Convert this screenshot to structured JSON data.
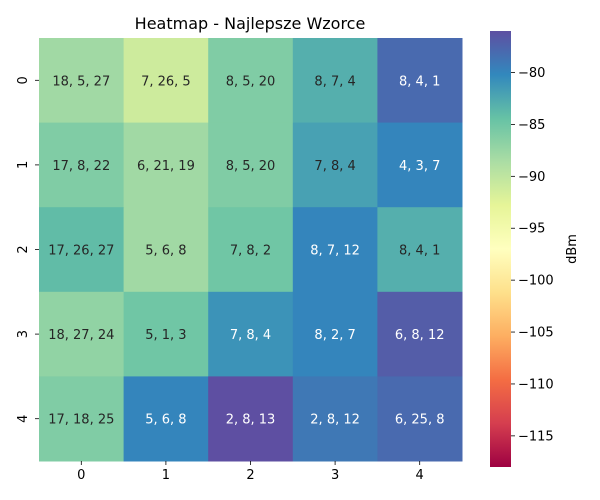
{
  "chart_data": {
    "type": "heatmap",
    "title": "Heatmap - Najlepsze Wzorce",
    "x_categories": [
      "0",
      "1",
      "2",
      "3",
      "4"
    ],
    "y_categories": [
      "0",
      "1",
      "2",
      "3",
      "4"
    ],
    "values": [
      [
        -88,
        -91,
        -86,
        -83,
        -78
      ],
      [
        -86,
        -88,
        -86,
        -82,
        -80
      ],
      [
        -84,
        -88,
        -85,
        -80,
        -83
      ],
      [
        -87,
        -85,
        -81,
        -80,
        -77
      ],
      [
        -86,
        -80,
        -76,
        -79,
        -78
      ]
    ],
    "annotations": [
      [
        "18, 5, 27",
        "7, 26, 5",
        "8, 5, 20",
        "8, 7, 4",
        "8, 4, 1"
      ],
      [
        "17, 8, 22",
        "6, 21, 19",
        "8, 5, 20",
        "7, 8, 4",
        "4, 3, 7"
      ],
      [
        "17, 26, 27",
        "5, 6, 8",
        "7, 8, 2",
        "8, 7, 12",
        "8, 4, 1"
      ],
      [
        "18, 27, 24",
        "5, 1, 3",
        "7, 8, 4",
        "8, 2, 7",
        "6, 8, 12"
      ],
      [
        "17, 18, 25",
        "5, 6, 8",
        "2, 8, 13",
        "2, 8, 12",
        "6, 25, 8"
      ]
    ],
    "colorbar": {
      "label": "dBm",
      "range": [
        -118,
        -76
      ],
      "ticks": [
        -80,
        -85,
        -90,
        -95,
        -100,
        -105,
        -110,
        -115
      ],
      "tick_labels": [
        "−80",
        "−85",
        "−90",
        "−95",
        "−100",
        "−105",
        "−110",
        "−115"
      ],
      "colormap": "Spectral"
    },
    "grid": false,
    "legend": "colorbar-right"
  }
}
